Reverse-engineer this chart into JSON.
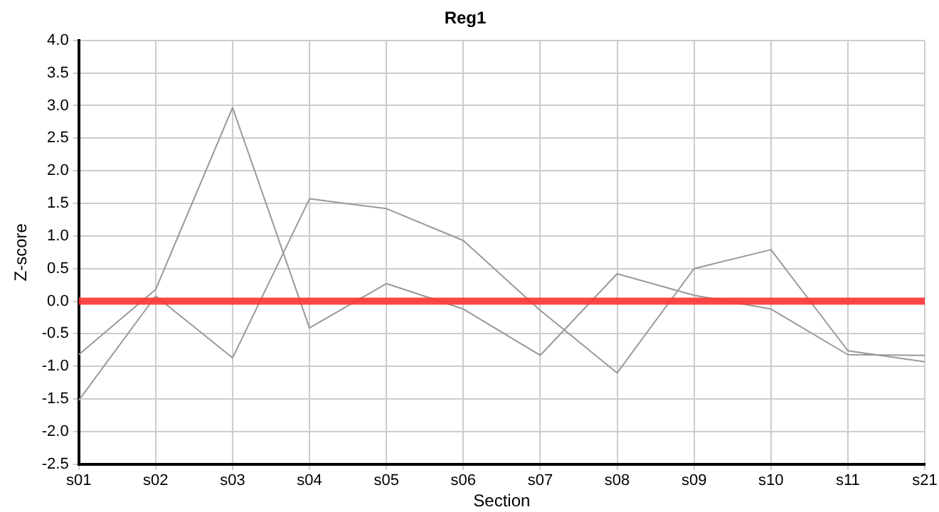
{
  "chart_data": {
    "type": "line",
    "title": "Reg1",
    "xlabel": "Section",
    "ylabel": "Z-score",
    "categories": [
      "s01",
      "s02",
      "s03",
      "s04",
      "s05",
      "s06",
      "s07",
      "s08",
      "s09",
      "s10",
      "s11",
      "s21"
    ],
    "series": [
      {
        "color": "#999999",
        "values": [
          -0.82,
          0.18,
          2.97,
          -0.41,
          0.27,
          -0.12,
          -0.83,
          0.42,
          0.09,
          -0.12,
          -0.82,
          -0.83
        ]
      },
      {
        "color": "#999999",
        "values": [
          -1.52,
          0.08,
          -0.87,
          1.57,
          1.42,
          0.93,
          -0.14,
          -1.1,
          0.5,
          0.79,
          -0.76,
          -0.93
        ]
      }
    ],
    "ylim": [
      -2.5,
      4.0
    ],
    "yticks": [
      {
        "value": -2.5,
        "label": "-2.5"
      },
      {
        "value": -2,
        "label": "-2.0"
      },
      {
        "value": -1.5,
        "label": "-1.5"
      },
      {
        "value": -1,
        "label": "-1.0"
      },
      {
        "value": -0.5,
        "label": "-0.5"
      },
      {
        "value": 0,
        "label": "0.0"
      },
      {
        "value": 0.5,
        "label": "0.5"
      },
      {
        "value": 1,
        "label": "1.0"
      },
      {
        "value": 1.5,
        "label": "1.5"
      },
      {
        "value": 2,
        "label": "2.0"
      },
      {
        "value": 2.5,
        "label": "2.5"
      },
      {
        "value": 3,
        "label": "3.0"
      },
      {
        "value": 3.5,
        "label": "3.5"
      },
      {
        "value": 4,
        "label": "4.0"
      }
    ],
    "ref_lines": [
      {
        "axis": "y",
        "value": 0,
        "color": "#ff3333"
      }
    ],
    "grid": true,
    "legend": false,
    "marker": "none",
    "line_style": "solid"
  }
}
